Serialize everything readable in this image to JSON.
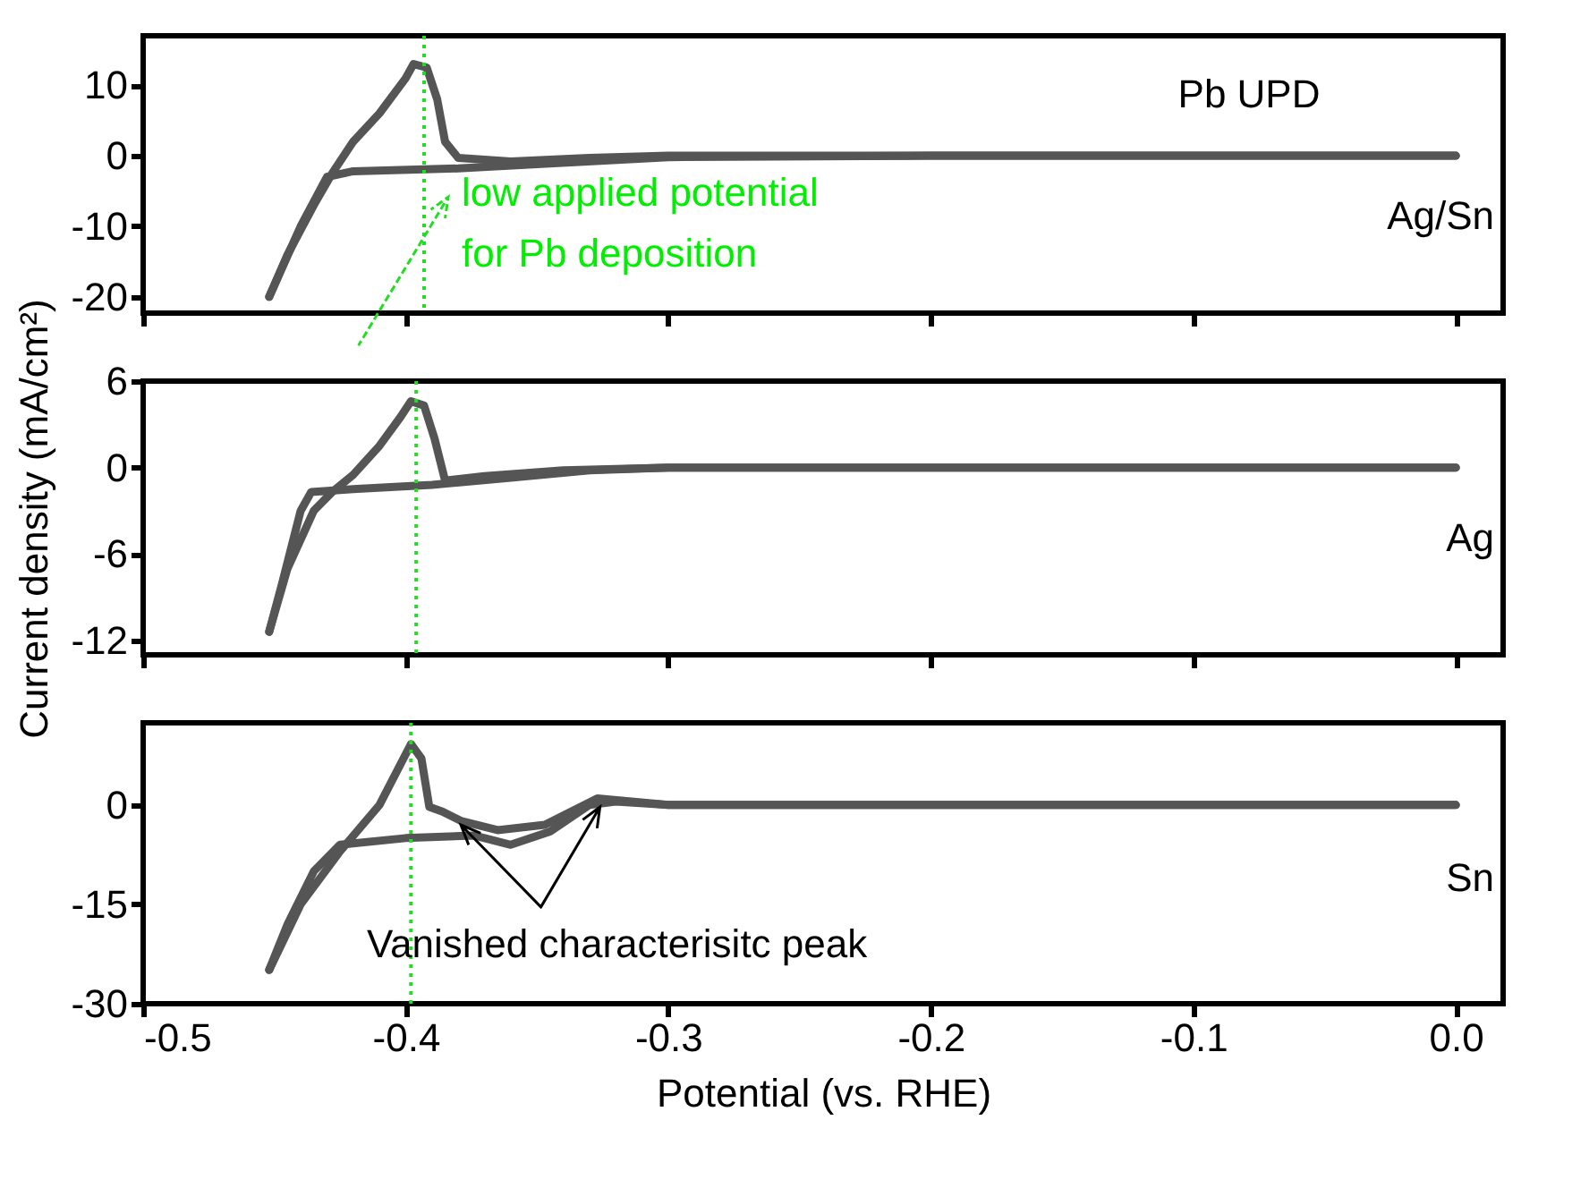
{
  "chart_data": [
    {
      "type": "line",
      "xlim": [
        -0.5,
        0.018
      ],
      "xticks": [
        -0.5,
        -0.4,
        -0.3,
        -0.2,
        -0.1,
        0
      ],
      "ylim": [
        -22.3,
        17
      ],
      "yticks": [
        -20,
        -10,
        0,
        10
      ],
      "tick_labels": "y",
      "series": [
        {
          "color": "#555555",
          "x": [
            0,
            -0.2,
            -0.3,
            -0.35,
            -0.38,
            -0.42,
            -0.43,
            -0.44,
            -0.452
          ],
          "values": [
            0,
            0,
            -0.2,
            -1.2,
            -1.8,
            -2.2,
            -3,
            -10,
            -20
          ]
        },
        {
          "color": "#555555",
          "x": [
            -0.452,
            -0.445,
            -0.435,
            -0.428,
            -0.42,
            -0.41,
            -0.4,
            -0.397,
            -0.392,
            -0.388,
            -0.385,
            -0.38,
            -0.36,
            -0.33,
            -0.3,
            -0.2,
            0
          ],
          "values": [
            -20,
            -14,
            -7,
            -2.5,
            2,
            6,
            11,
            13,
            12.5,
            8,
            2,
            -0.3,
            -0.8,
            -0.3,
            0,
            0,
            0
          ]
        }
      ],
      "ref_lines": [
        {
          "axis": "x",
          "value": -0.393,
          "color": "#22dd22",
          "line_style": "dotted"
        }
      ],
      "annotations": [
        "Pb UPD",
        "Ag/Sn",
        "low applied potential\nfor Pb deposition"
      ]
    },
    {
      "type": "line",
      "xlim": [
        -0.5,
        0.018
      ],
      "xticks": [
        -0.5,
        -0.4,
        -0.3,
        -0.2,
        -0.1,
        0
      ],
      "ylim": [
        -13,
        6
      ],
      "yticks": [
        -12,
        -6,
        0,
        6
      ],
      "tick_labels": "y",
      "ylabel": "Current density (mA/cm²)",
      "series": [
        {
          "color": "#555555",
          "x": [
            0,
            -0.3,
            -0.33,
            -0.36,
            -0.39,
            -0.42,
            -0.436,
            -0.44,
            -0.447,
            -0.452
          ],
          "values": [
            0,
            0,
            -0.2,
            -0.7,
            -1.2,
            -1.5,
            -1.7,
            -3,
            -8,
            -11.4
          ]
        },
        {
          "color": "#555555",
          "x": [
            -0.452,
            -0.445,
            -0.435,
            -0.428,
            -0.42,
            -0.41,
            -0.402,
            -0.398,
            -0.393,
            -0.389,
            -0.385,
            -0.37,
            -0.34,
            -0.3,
            0
          ],
          "values": [
            -11.4,
            -7,
            -3,
            -1.7,
            -0.5,
            1.5,
            3.5,
            4.6,
            4.3,
            2,
            -0.9,
            -0.6,
            -0.2,
            0,
            0
          ]
        }
      ],
      "ref_lines": [
        {
          "axis": "x",
          "value": -0.396,
          "color": "#22dd22",
          "line_style": "dotted"
        }
      ],
      "annotations": [
        "Ag"
      ]
    },
    {
      "type": "line",
      "xlim": [
        -0.5,
        0.018
      ],
      "xticks": [
        -0.5,
        -0.4,
        -0.3,
        -0.2,
        -0.1,
        {
          "value": 0,
          "label": "0.0"
        }
      ],
      "ylim": [
        -30,
        12.4
      ],
      "yticks": [
        -30,
        -15,
        0
      ],
      "xlabel": "Potential (vs. RHE)",
      "series": [
        {
          "color": "#555555",
          "x": [
            0,
            -0.3,
            -0.32,
            -0.33,
            -0.345,
            -0.36,
            -0.374,
            -0.4,
            -0.425,
            -0.435,
            -0.445,
            -0.452
          ],
          "values": [
            0,
            0,
            0.5,
            0,
            -4,
            -6,
            -4.6,
            -5,
            -6,
            -10,
            -18,
            -24.9
          ]
        },
        {
          "color": "#555555",
          "x": [
            -0.452,
            -0.44,
            -0.425,
            -0.41,
            -0.398,
            -0.394,
            -0.391,
            -0.386,
            -0.379,
            -0.365,
            -0.347,
            -0.327,
            -0.3,
            0
          ],
          "values": [
            -24.9,
            -15,
            -7,
            0,
            9.2,
            7,
            -0.3,
            -1,
            -2.4,
            -3.8,
            -3,
            1,
            0,
            0
          ]
        }
      ],
      "ref_lines": [
        {
          "axis": "x",
          "value": -0.398,
          "color": "#22dd22",
          "line_style": "dotted"
        }
      ],
      "annotations": [
        "Sn",
        "Vanished characterisitc peak"
      ]
    }
  ]
}
